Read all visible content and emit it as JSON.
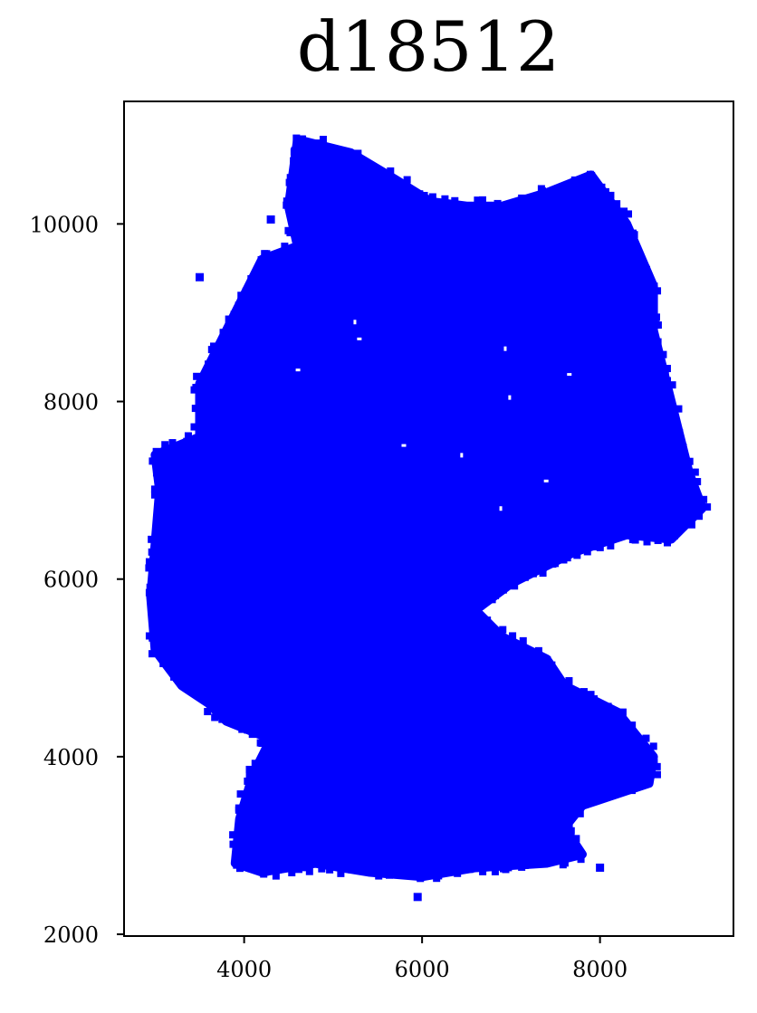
{
  "chart_data": {
    "type": "scatter",
    "title": "d18512",
    "xlabel": "",
    "ylabel": "",
    "xlim": [
      2650,
      9500
    ],
    "ylim": [
      1980,
      11380
    ],
    "grid": false,
    "legend": "none",
    "marker": "square",
    "color": "#0000ff",
    "xticks": [
      4000,
      6000,
      8000
    ],
    "xtick_labels": [
      "4000",
      "6000",
      "8000"
    ],
    "yticks": [
      2000,
      4000,
      6000,
      8000,
      10000
    ],
    "ytick_labels": [
      "2000",
      "4000",
      "6000",
      "8000",
      "10000"
    ],
    "region_outline": [
      [
        4600,
        10950
      ],
      [
        5200,
        10800
      ],
      [
        5700,
        10500
      ],
      [
        6100,
        10250
      ],
      [
        6500,
        10200
      ],
      [
        6900,
        10200
      ],
      [
        7400,
        10350
      ],
      [
        7900,
        10550
      ],
      [
        8300,
        10000
      ],
      [
        8600,
        9300
      ],
      [
        8600,
        8800
      ],
      [
        8800,
        8000
      ],
      [
        9000,
        7200
      ],
      [
        9150,
        6800
      ],
      [
        8800,
        6450
      ],
      [
        8300,
        6500
      ],
      [
        7700,
        6300
      ],
      [
        7000,
        5950
      ],
      [
        6600,
        5650
      ],
      [
        6900,
        5350
      ],
      [
        7400,
        5100
      ],
      [
        7600,
        4800
      ],
      [
        8200,
        4500
      ],
      [
        8600,
        4000
      ],
      [
        8550,
        3700
      ],
      [
        7800,
        3450
      ],
      [
        7600,
        3200
      ],
      [
        7800,
        2900
      ],
      [
        7400,
        2800
      ],
      [
        6600,
        2750
      ],
      [
        6000,
        2650
      ],
      [
        5400,
        2700
      ],
      [
        4800,
        2800
      ],
      [
        4200,
        2700
      ],
      [
        3900,
        2800
      ],
      [
        3950,
        3300
      ],
      [
        4100,
        3800
      ],
      [
        4300,
        4200
      ],
      [
        3800,
        4400
      ],
      [
        3600,
        4600
      ],
      [
        3300,
        4800
      ],
      [
        3000,
        5200
      ],
      [
        2950,
        5800
      ],
      [
        3000,
        6400
      ],
      [
        3050,
        7000
      ],
      [
        3000,
        7400
      ],
      [
        3500,
        7600
      ],
      [
        3500,
        8200
      ],
      [
        3800,
        8800
      ],
      [
        4000,
        9200
      ],
      [
        4200,
        9600
      ],
      [
        4600,
        9750
      ],
      [
        4500,
        10200
      ],
      [
        4600,
        10950
      ]
    ],
    "outliers": [
      [
        4300,
        10050
      ],
      [
        3500,
        9400
      ],
      [
        4650,
        10950
      ],
      [
        5950,
        2420
      ],
      [
        8000,
        2750
      ],
      [
        8550,
        3750
      ],
      [
        4700,
        10700
      ]
    ]
  }
}
